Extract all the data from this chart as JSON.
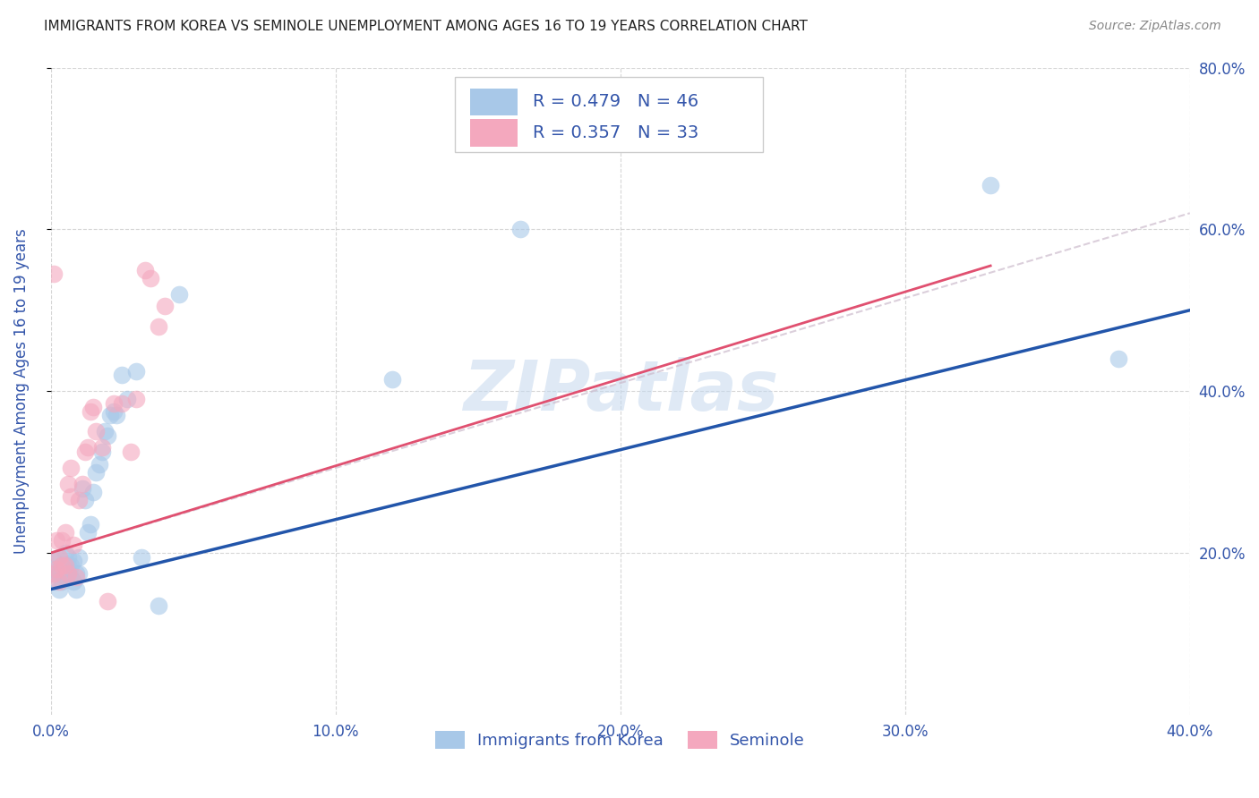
{
  "title": "IMMIGRANTS FROM KOREA VS SEMINOLE UNEMPLOYMENT AMONG AGES 16 TO 19 YEARS CORRELATION CHART",
  "source": "Source: ZipAtlas.com",
  "ylabel": "Unemployment Among Ages 16 to 19 years",
  "legend_blue_label": "Immigrants from Korea",
  "legend_pink_label": "Seminole",
  "legend_blue_r": "R = 0.479",
  "legend_blue_n": "N = 46",
  "legend_pink_r": "R = 0.357",
  "legend_pink_n": "N = 33",
  "xlim": [
    0.0,
    0.4
  ],
  "ylim": [
    0.0,
    0.8
  ],
  "xtick_labels": [
    "0.0%",
    "10.0%",
    "20.0%",
    "30.0%",
    "40.0%"
  ],
  "ytick_labels": [
    "20.0%",
    "40.0%",
    "60.0%",
    "80.0%"
  ],
  "xtick_values": [
    0.0,
    0.1,
    0.2,
    0.3,
    0.4
  ],
  "ytick_values": [
    0.2,
    0.4,
    0.6,
    0.8
  ],
  "blue_color": "#a8c8e8",
  "pink_color": "#f4a8be",
  "blue_line_color": "#2255aa",
  "pink_line_color": "#e05070",
  "text_color": "#3355aa",
  "watermark": "ZIPatlas",
  "blue_scatter_x": [
    0.001,
    0.001,
    0.002,
    0.002,
    0.003,
    0.003,
    0.003,
    0.004,
    0.004,
    0.005,
    0.005,
    0.005,
    0.006,
    0.006,
    0.006,
    0.007,
    0.007,
    0.008,
    0.008,
    0.009,
    0.009,
    0.01,
    0.01,
    0.011,
    0.012,
    0.013,
    0.014,
    0.015,
    0.016,
    0.017,
    0.018,
    0.019,
    0.02,
    0.021,
    0.022,
    0.023,
    0.025,
    0.027,
    0.03,
    0.032,
    0.038,
    0.045,
    0.12,
    0.165,
    0.33,
    0.375
  ],
  "blue_scatter_y": [
    0.175,
    0.19,
    0.165,
    0.18,
    0.155,
    0.175,
    0.195,
    0.165,
    0.185,
    0.17,
    0.185,
    0.2,
    0.175,
    0.185,
    0.195,
    0.17,
    0.185,
    0.165,
    0.19,
    0.155,
    0.175,
    0.175,
    0.195,
    0.28,
    0.265,
    0.225,
    0.235,
    0.275,
    0.3,
    0.31,
    0.325,
    0.35,
    0.345,
    0.37,
    0.375,
    0.37,
    0.42,
    0.39,
    0.425,
    0.195,
    0.135,
    0.52,
    0.415,
    0.6,
    0.655,
    0.44
  ],
  "pink_scatter_x": [
    0.001,
    0.001,
    0.002,
    0.002,
    0.003,
    0.003,
    0.004,
    0.004,
    0.005,
    0.005,
    0.006,
    0.006,
    0.007,
    0.007,
    0.008,
    0.009,
    0.01,
    0.011,
    0.012,
    0.013,
    0.014,
    0.015,
    0.016,
    0.018,
    0.02,
    0.022,
    0.025,
    0.028,
    0.03,
    0.033,
    0.035,
    0.038,
    0.04
  ],
  "pink_scatter_y": [
    0.175,
    0.545,
    0.18,
    0.215,
    0.165,
    0.195,
    0.185,
    0.215,
    0.185,
    0.225,
    0.175,
    0.285,
    0.27,
    0.305,
    0.21,
    0.17,
    0.265,
    0.285,
    0.325,
    0.33,
    0.375,
    0.38,
    0.35,
    0.33,
    0.14,
    0.385,
    0.385,
    0.325,
    0.39,
    0.55,
    0.54,
    0.48,
    0.505
  ],
  "blue_line_x": [
    0.0,
    0.4
  ],
  "blue_line_y": [
    0.155,
    0.5
  ],
  "pink_line_x": [
    0.0,
    0.33
  ],
  "pink_line_y": [
    0.2,
    0.555
  ],
  "dash_line_x": [
    0.0,
    0.4
  ],
  "dash_line_y": [
    0.2,
    0.62
  ],
  "background_color": "#ffffff",
  "grid_color": "#cccccc"
}
